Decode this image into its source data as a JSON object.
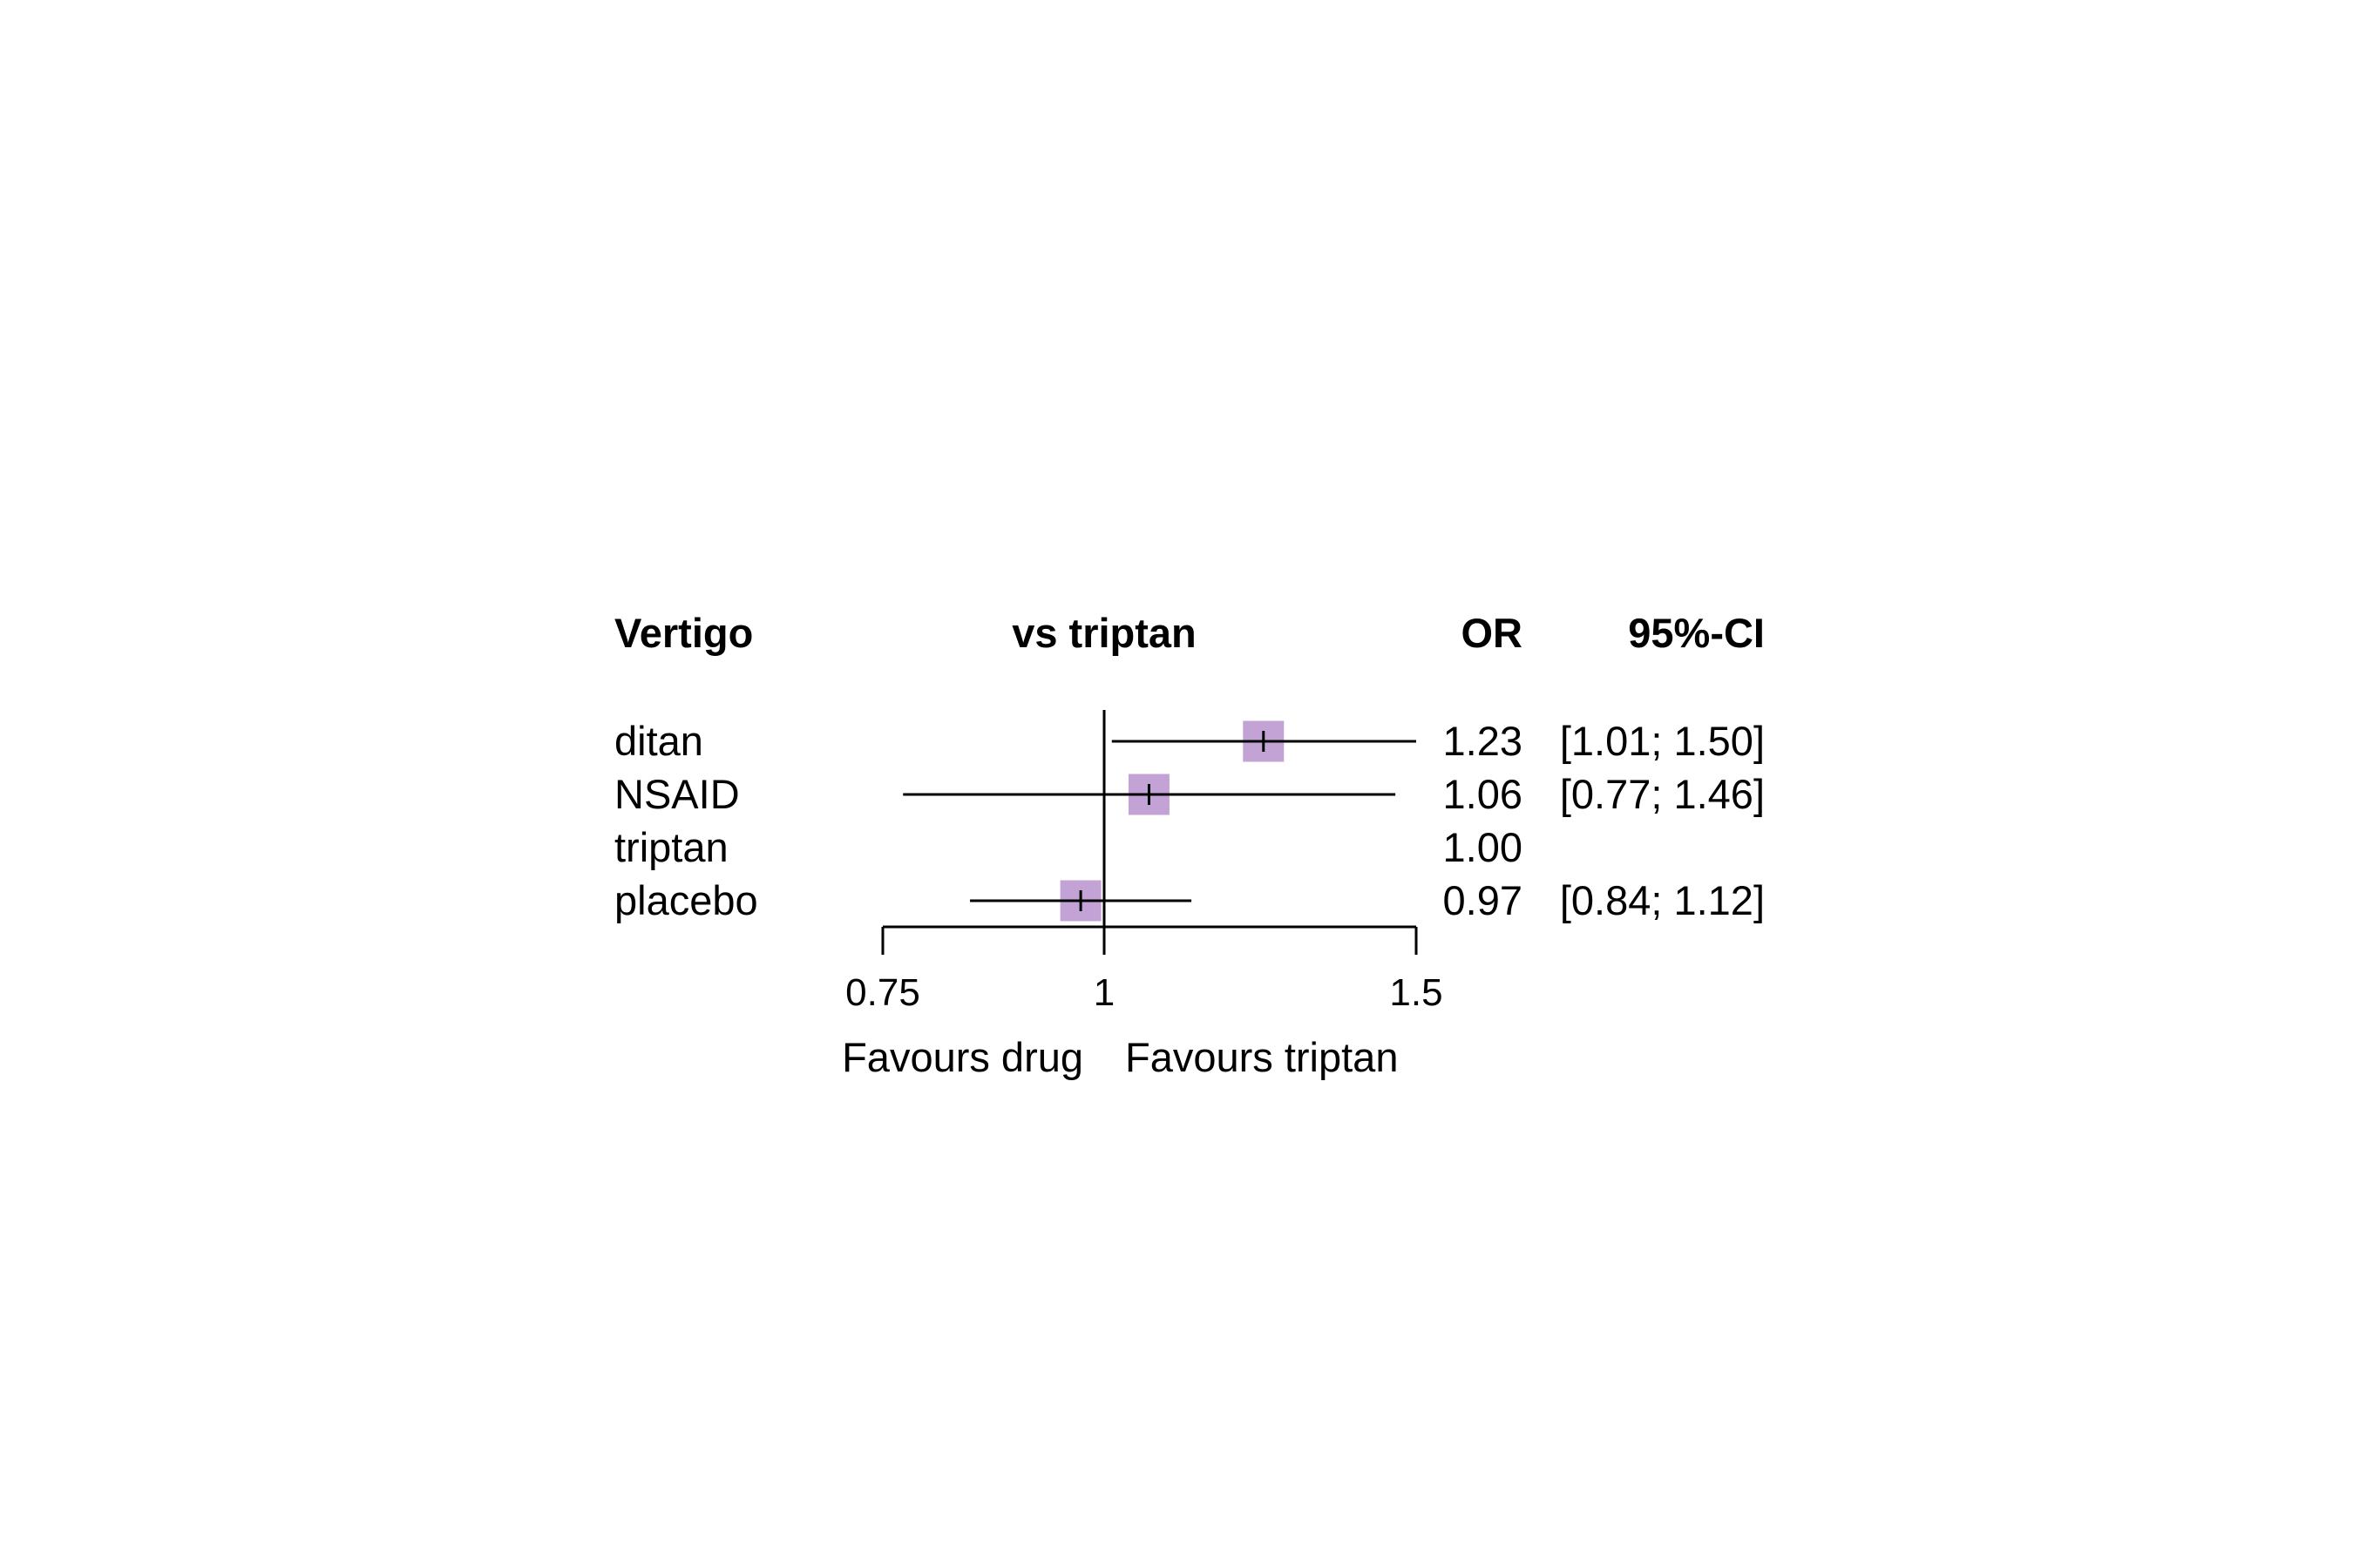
{
  "chart_data": {
    "type": "forest",
    "headers": {
      "outcome": "Vertigo",
      "comparison": "vs triptan",
      "estimate": "OR",
      "interval": "95%-CI"
    },
    "rows": [
      {
        "label": "ditan",
        "or": 1.23,
        "ci_low": 1.01,
        "ci_high": 1.5,
        "or_text": "1.23",
        "ci_text": "[1.01; 1.50]"
      },
      {
        "label": "NSAID",
        "or": 1.06,
        "ci_low": 0.77,
        "ci_high": 1.46,
        "or_text": "1.06",
        "ci_text": "[0.77; 1.46]"
      },
      {
        "label": "triptan",
        "or": 1.0,
        "ci_low": null,
        "ci_high": null,
        "or_text": "1.00",
        "ci_text": ""
      },
      {
        "label": "placebo",
        "or": 0.97,
        "ci_low": 0.84,
        "ci_high": 1.12,
        "or_text": "0.97",
        "ci_text": "[0.84; 1.12]"
      }
    ],
    "x_scale": "log",
    "xlim": [
      0.75,
      1.5
    ],
    "reference_line": 1,
    "ticks": [
      0.75,
      1,
      1.5
    ],
    "tick_labels": [
      "0.75",
      "1",
      "1.5"
    ],
    "favours_left": "Favours drug",
    "favours_right": "Favours triptan",
    "colors": {
      "marker": "#c3a3d6",
      "line": "#000000"
    }
  }
}
